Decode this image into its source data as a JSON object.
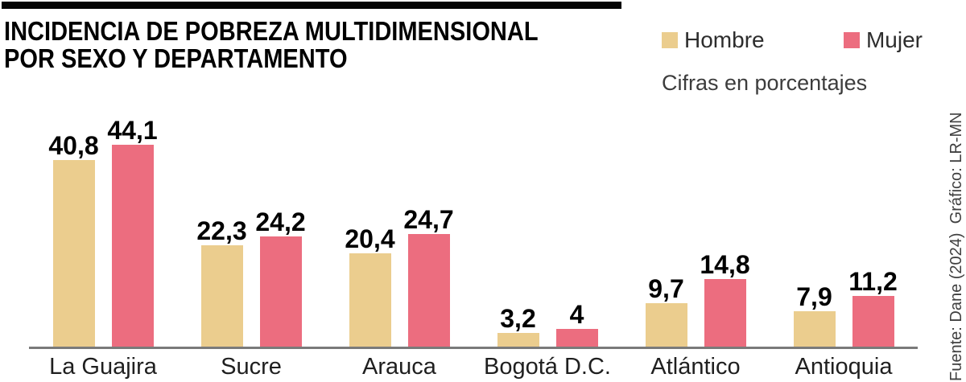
{
  "header": {
    "title_line1": "INCIDENCIA DE POBREZA MULTIDIMENSIONAL",
    "title_line2": "POR SEXO Y DEPARTAMENTO"
  },
  "legend": {
    "items": [
      {
        "label": "Hombre",
        "color": "#ebcd8e"
      },
      {
        "label": "Mujer",
        "color": "#ec6d7f"
      }
    ],
    "note": "Cifras en porcentajes"
  },
  "source": "Fuente: Dane (2024)  Gráfico: LR-MN",
  "chart_data": {
    "type": "bar",
    "title": "INCIDENCIA DE POBREZA MULTIDIMENSIONAL POR SEXO Y DEPARTAMENTO",
    "subtitle": "Cifras en porcentajes",
    "categories": [
      "La Guajira",
      "Sucre",
      "Arauca",
      "Bogotá D.C.",
      "Atlántico",
      "Antioquia"
    ],
    "series": [
      {
        "name": "Hombre",
        "color": "#ebcd8e",
        "values": [
          40.8,
          22.3,
          20.4,
          3.2,
          9.7,
          7.9
        ],
        "value_labels": [
          "40,8",
          "22,3",
          "20,4",
          "3,2",
          "9,7",
          "7,9"
        ]
      },
      {
        "name": "Mujer",
        "color": "#ec6d7f",
        "values": [
          44.1,
          24.2,
          24.7,
          4,
          14.8,
          11.2
        ],
        "value_labels": [
          "44,1",
          "24,2",
          "24,7",
          "4",
          "14,8",
          "11,2"
        ]
      }
    ],
    "xlabel": "",
    "ylabel": "",
    "ylim": [
      0,
      50
    ],
    "grid": false,
    "legend_position": "top-right",
    "value_labels_shown": true,
    "axis_color": "#7a7a7a"
  }
}
